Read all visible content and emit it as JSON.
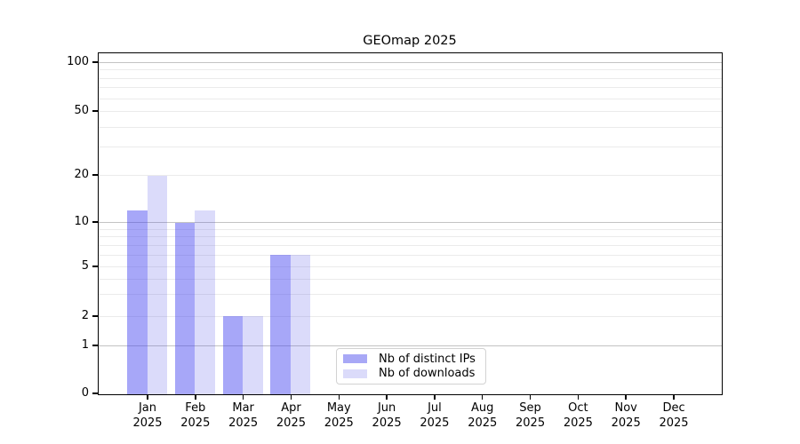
{
  "title": "GEOmap 2025",
  "chart_data": {
    "type": "bar",
    "title": "GEOmap 2025",
    "categories": [
      {
        "month": "Jan",
        "year": "2025"
      },
      {
        "month": "Feb",
        "year": "2025"
      },
      {
        "month": "Mar",
        "year": "2025"
      },
      {
        "month": "Apr",
        "year": "2025"
      },
      {
        "month": "May",
        "year": "2025"
      },
      {
        "month": "Jun",
        "year": "2025"
      },
      {
        "month": "Jul",
        "year": "2025"
      },
      {
        "month": "Aug",
        "year": "2025"
      },
      {
        "month": "Sep",
        "year": "2025"
      },
      {
        "month": "Oct",
        "year": "2025"
      },
      {
        "month": "Nov",
        "year": "2025"
      },
      {
        "month": "Dec",
        "year": "2025"
      }
    ],
    "series": [
      {
        "name": "Nb of distinct IPs",
        "color": "#a8a8f6",
        "fill": "rgba(60,60,240,0.45)",
        "values": [
          12,
          10,
          2,
          6,
          0,
          0,
          0,
          0,
          0,
          0,
          0,
          0
        ]
      },
      {
        "name": "Nb of downloads",
        "color": "#dbdbfa",
        "fill": "rgba(75,75,230,0.2)",
        "values": [
          20,
          12,
          2,
          6,
          0,
          0,
          0,
          0,
          0,
          0,
          0,
          0
        ]
      }
    ],
    "y_axis": {
      "scale": "symlog",
      "range": [
        0,
        100
      ],
      "ticks": [
        0,
        1,
        2,
        5,
        10,
        20,
        50,
        100
      ],
      "tick_labels": [
        "0",
        "1",
        "2",
        "5",
        "10",
        "20",
        "50",
        "100"
      ],
      "major_gridlines": [
        1,
        10,
        100
      ],
      "minor_gridlines": [
        2,
        3,
        4,
        5,
        6,
        7,
        8,
        9,
        20,
        30,
        40,
        50,
        60,
        70,
        80,
        90
      ],
      "scale_anchors": [
        [
          0,
          0
        ],
        [
          1,
          0.141
        ],
        [
          2,
          0.2272
        ],
        [
          5,
          0.3734
        ],
        [
          10,
          0.5039
        ],
        [
          20,
          0.6423
        ],
        [
          50,
          0.8303
        ],
        [
          100,
          0.9739
        ]
      ]
    },
    "legend": {
      "position": "lower center",
      "items": [
        "Nb of distinct IPs",
        "Nb of downloads"
      ]
    },
    "grid": true
  },
  "colors": {
    "major_grid": "#c3c3c3",
    "minor_grid": "#ebebeb",
    "axis": "#000000",
    "background": "#ffffff",
    "bar_distinct_ips": "#a8a8f6",
    "bar_downloads": "#dbdbfa"
  }
}
